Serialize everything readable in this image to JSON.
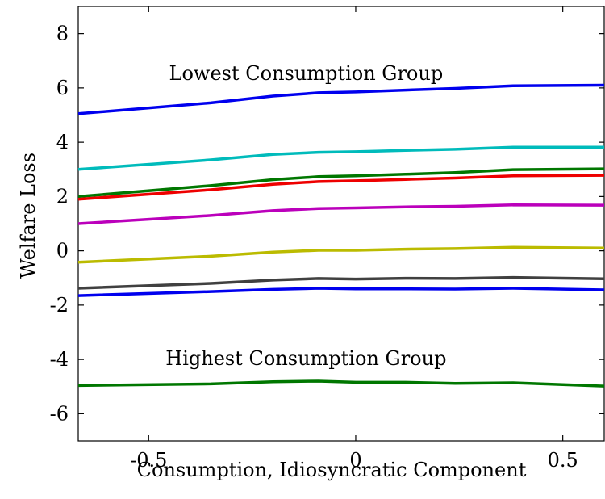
{
  "chart_data": {
    "type": "line",
    "title": "",
    "xlabel": "Consumption, Idiosyncratic Component",
    "ylabel": "Welfare Loss",
    "xlim": [
      -0.67,
      0.6
    ],
    "ylim": [
      -7,
      9
    ],
    "xticks": [
      -0.5,
      0,
      0.5
    ],
    "xtick_labels": [
      "-0.5",
      "0",
      "0.5"
    ],
    "yticks": [
      -6,
      -4,
      -2,
      0,
      2,
      4,
      6,
      8
    ],
    "ytick_labels": [
      "-6",
      "-4",
      "-2",
      "0",
      "2",
      "4",
      "6",
      "8"
    ],
    "grid": false,
    "legend": "none",
    "x": [
      -0.67,
      -0.35,
      -0.2,
      -0.09,
      0.0,
      0.12,
      0.24,
      0.38,
      0.6
    ],
    "series": [
      {
        "color": "#0000ee",
        "values": [
          5.05,
          5.45,
          5.7,
          5.82,
          5.85,
          5.92,
          5.98,
          6.08,
          6.1
        ]
      },
      {
        "color": "#00bbbb",
        "values": [
          3.0,
          3.35,
          3.55,
          3.63,
          3.65,
          3.7,
          3.74,
          3.82,
          3.82
        ]
      },
      {
        "color": "#007700",
        "values": [
          2.0,
          2.4,
          2.62,
          2.73,
          2.76,
          2.82,
          2.88,
          2.99,
          3.02
        ]
      },
      {
        "color": "#ee0000",
        "values": [
          1.9,
          2.25,
          2.45,
          2.55,
          2.58,
          2.63,
          2.68,
          2.76,
          2.78
        ]
      },
      {
        "color": "#bb00bb",
        "values": [
          1.0,
          1.3,
          1.48,
          1.56,
          1.58,
          1.62,
          1.64,
          1.69,
          1.68
        ]
      },
      {
        "color": "#bbbb00",
        "values": [
          -0.42,
          -0.2,
          -0.05,
          0.02,
          0.02,
          0.06,
          0.08,
          0.13,
          0.1
        ]
      },
      {
        "color": "#404040",
        "values": [
          -1.38,
          -1.2,
          -1.08,
          -1.02,
          -1.04,
          -1.01,
          -1.02,
          -0.98,
          -1.03
        ]
      },
      {
        "color": "#0000ee",
        "values": [
          -1.65,
          -1.5,
          -1.42,
          -1.38,
          -1.4,
          -1.4,
          -1.41,
          -1.38,
          -1.44
        ]
      },
      {
        "color": "#007700",
        "values": [
          -4.96,
          -4.9,
          -4.82,
          -4.8,
          -4.84,
          -4.84,
          -4.88,
          -4.86,
          -4.98
        ]
      }
    ],
    "annotations": [
      {
        "text": "Lowest Consumption Group",
        "x": -0.12,
        "y": 6.3
      },
      {
        "text": "Highest Consumption Group",
        "x": -0.12,
        "y": -4.2
      }
    ]
  }
}
